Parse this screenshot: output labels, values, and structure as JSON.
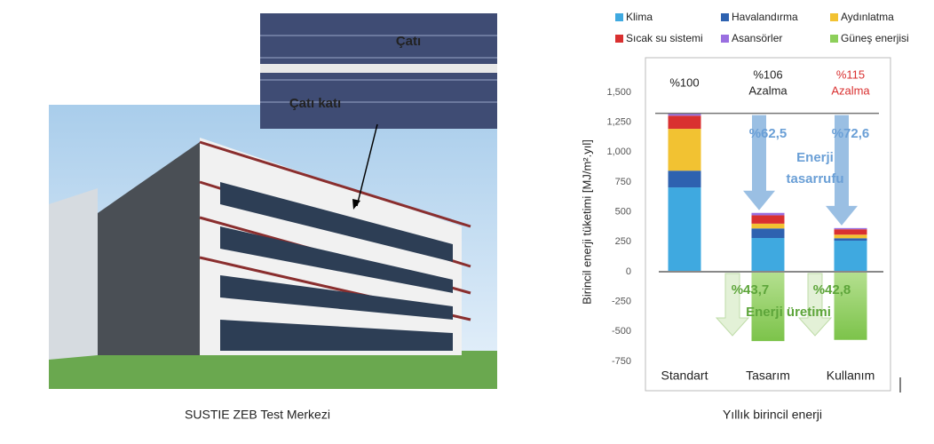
{
  "photo": {
    "labels": [
      "Çatı",
      "Çatı katı"
    ],
    "caption": "SUSTIE ZEB Test Merkezi"
  },
  "chart_data": {
    "type": "bar",
    "stacked": true,
    "y_label": "Birincil enerji tüketimi [MJ/m².yıl]",
    "caption": "Yıllık birincil enerji",
    "categories": [
      "Standart",
      "Tasarım",
      "Kullanım"
    ],
    "series": [
      {
        "name": "Klima",
        "color": "#3fa9e0",
        "values": [
          705,
          282,
          260
        ]
      },
      {
        "name": "Havalandırma",
        "color": "#2e62b0",
        "values": [
          140,
          80,
          20
        ]
      },
      {
        "name": "Aydınlatma",
        "color": "#f2c232",
        "values": [
          350,
          40,
          30
        ]
      },
      {
        "name": "Sıcak su sistemi",
        "color": "#d93030",
        "values": [
          110,
          70,
          45
        ]
      },
      {
        "name": "Asansörler",
        "color": "#9a6fe0",
        "values": [
          20,
          20,
          10
        ]
      },
      {
        "name": "Güneş enerjisi",
        "color": "#8dcf5a",
        "values": [
          null,
          -580,
          -570
        ]
      }
    ],
    "annotations": [
      "%100",
      "%106",
      "Azalma",
      "%115",
      "Azalma",
      "%62,5",
      "%72,6",
      "Enerji",
      "tasarrufu",
      "%43,7",
      "%42,8",
      "Enerji üretimi"
    ],
    "ylim": [
      -750,
      1500
    ],
    "yticks": [
      {
        "value": 1500,
        "label": "1,500"
      },
      {
        "value": 1250,
        "label": "1,250"
      },
      {
        "value": 1000,
        "label": "1,000"
      },
      750,
      500,
      250,
      0,
      -250,
      -500,
      -750
    ]
  }
}
